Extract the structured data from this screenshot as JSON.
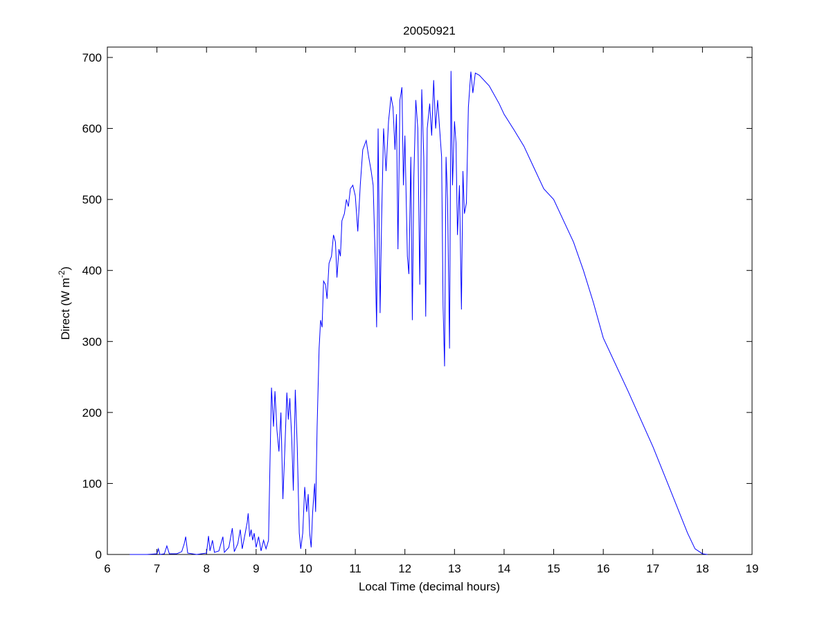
{
  "chart_data": {
    "type": "line",
    "title": "20050921",
    "xlabel": "Local Time (decimal hours)",
    "ylabel": {
      "text": "Direct (W m",
      "superscript": "-2",
      "suffix": ")"
    },
    "xlim": [
      6,
      19
    ],
    "xticks": [
      6,
      7,
      8,
      9,
      10,
      11,
      12,
      13,
      14,
      15,
      16,
      17,
      18,
      19
    ],
    "ylim": [
      0,
      700
    ],
    "yticks": [
      0,
      100,
      200,
      300,
      400,
      500,
      600,
      700
    ],
    "grid": false,
    "series": [
      {
        "color": "#0000ff",
        "x": [
          6.45,
          6.6,
          6.8,
          7.0,
          7.03,
          7.06,
          7.15,
          7.2,
          7.25,
          7.4,
          7.5,
          7.55,
          7.58,
          7.62,
          7.8,
          8.0,
          8.04,
          8.07,
          8.12,
          8.16,
          8.25,
          8.33,
          8.36,
          8.45,
          8.52,
          8.56,
          8.63,
          8.68,
          8.72,
          8.78,
          8.82,
          8.84,
          8.87,
          8.9,
          8.93,
          8.96,
          9.0,
          9.05,
          9.1,
          9.15,
          9.2,
          9.25,
          9.28,
          9.31,
          9.35,
          9.38,
          9.42,
          9.46,
          9.5,
          9.54,
          9.58,
          9.62,
          9.65,
          9.68,
          9.72,
          9.75,
          9.79,
          9.83,
          9.87,
          9.9,
          9.94,
          9.98,
          10.02,
          10.05,
          10.08,
          10.11,
          10.14,
          10.18,
          10.2,
          10.23,
          10.27,
          10.3,
          10.33,
          10.36,
          10.4,
          10.43,
          10.47,
          10.52,
          10.56,
          10.6,
          10.63,
          10.67,
          10.7,
          10.73,
          10.78,
          10.82,
          10.86,
          10.9,
          10.95,
          11.0,
          11.05,
          11.1,
          11.15,
          11.22,
          11.27,
          11.32,
          11.36,
          11.4,
          11.43,
          11.46,
          11.5,
          11.53,
          11.57,
          11.62,
          11.67,
          11.72,
          11.76,
          11.8,
          11.83,
          11.86,
          11.9,
          11.94,
          11.97,
          12.0,
          12.05,
          12.08,
          12.12,
          12.15,
          12.18,
          12.22,
          12.26,
          12.3,
          12.34,
          12.38,
          12.42,
          12.45,
          12.5,
          12.54,
          12.58,
          12.62,
          12.66,
          12.7,
          12.74,
          12.77,
          12.8,
          12.83,
          12.86,
          12.9,
          12.93,
          12.96,
          13.0,
          13.03,
          13.06,
          13.1,
          13.14,
          13.17,
          13.2,
          13.24,
          13.28,
          13.33,
          13.37,
          13.42,
          13.5,
          13.7,
          13.9,
          14.0,
          14.2,
          14.4,
          14.6,
          14.8,
          15.0,
          15.2,
          15.4,
          15.6,
          15.8,
          16.0,
          16.5,
          17.0,
          17.3,
          17.5,
          17.7,
          17.85,
          18.0,
          18.1
        ],
        "values": [
          0,
          0,
          0,
          1,
          8,
          0,
          1,
          12,
          1,
          1,
          4,
          15,
          25,
          2,
          0,
          2,
          26,
          5,
          20,
          3,
          5,
          25,
          3,
          10,
          37,
          4,
          15,
          35,
          8,
          30,
          45,
          58,
          25,
          35,
          20,
          30,
          10,
          25,
          5,
          20,
          8,
          20,
          130,
          235,
          180,
          230,
          175,
          145,
          200,
          78,
          150,
          228,
          190,
          220,
          160,
          90,
          232,
          150,
          30,
          8,
          30,
          95,
          60,
          85,
          30,
          10,
          60,
          100,
          60,
          180,
          290,
          330,
          320,
          385,
          380,
          360,
          410,
          420,
          450,
          440,
          390,
          430,
          420,
          470,
          480,
          500,
          490,
          515,
          520,
          505,
          455,
          520,
          570,
          583,
          560,
          540,
          520,
          420,
          320,
          600,
          340,
          470,
          600,
          540,
          610,
          645,
          630,
          570,
          620,
          430,
          640,
          658,
          520,
          590,
          420,
          395,
          560,
          330,
          530,
          640,
          600,
          380,
          655,
          560,
          335,
          600,
          635,
          590,
          668,
          600,
          640,
          600,
          560,
          350,
          265,
          560,
          500,
          290,
          681,
          520,
          610,
          580,
          450,
          520,
          345,
          540,
          480,
          495,
          630,
          680,
          650,
          678,
          675,
          660,
          635,
          620,
          598,
          575,
          545,
          515,
          500,
          470,
          440,
          400,
          355,
          305,
          230,
          152,
          100,
          65,
          30,
          8,
          1,
          0
        ]
      }
    ]
  }
}
